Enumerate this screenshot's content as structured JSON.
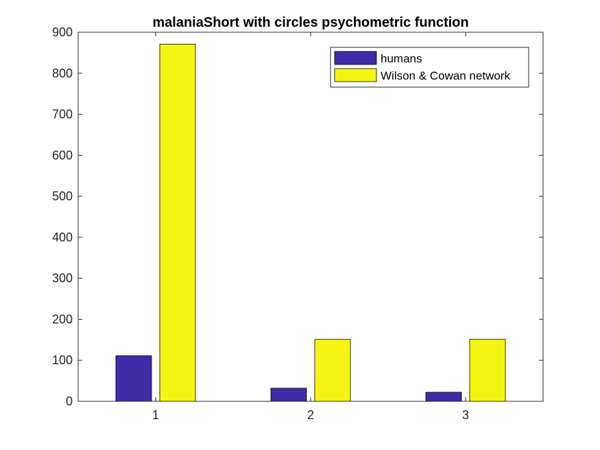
{
  "chart_data": {
    "type": "bar",
    "title": "malaniaShort with circles psychometric function",
    "xlabel": "",
    "ylabel": "",
    "categories": [
      "1",
      "2",
      "3"
    ],
    "series": [
      {
        "name": "humans",
        "color": "#3f2aa8",
        "values": [
          111,
          32,
          22
        ]
      },
      {
        "name": "Wilson & Cowan network",
        "color": "#f5f514",
        "values": [
          871,
          151,
          151
        ]
      }
    ],
    "ylim": [
      0,
      900
    ],
    "yticks": [
      0,
      100,
      200,
      300,
      400,
      500,
      600,
      700,
      800,
      900
    ],
    "grid": false,
    "legend_position": "top-right"
  }
}
